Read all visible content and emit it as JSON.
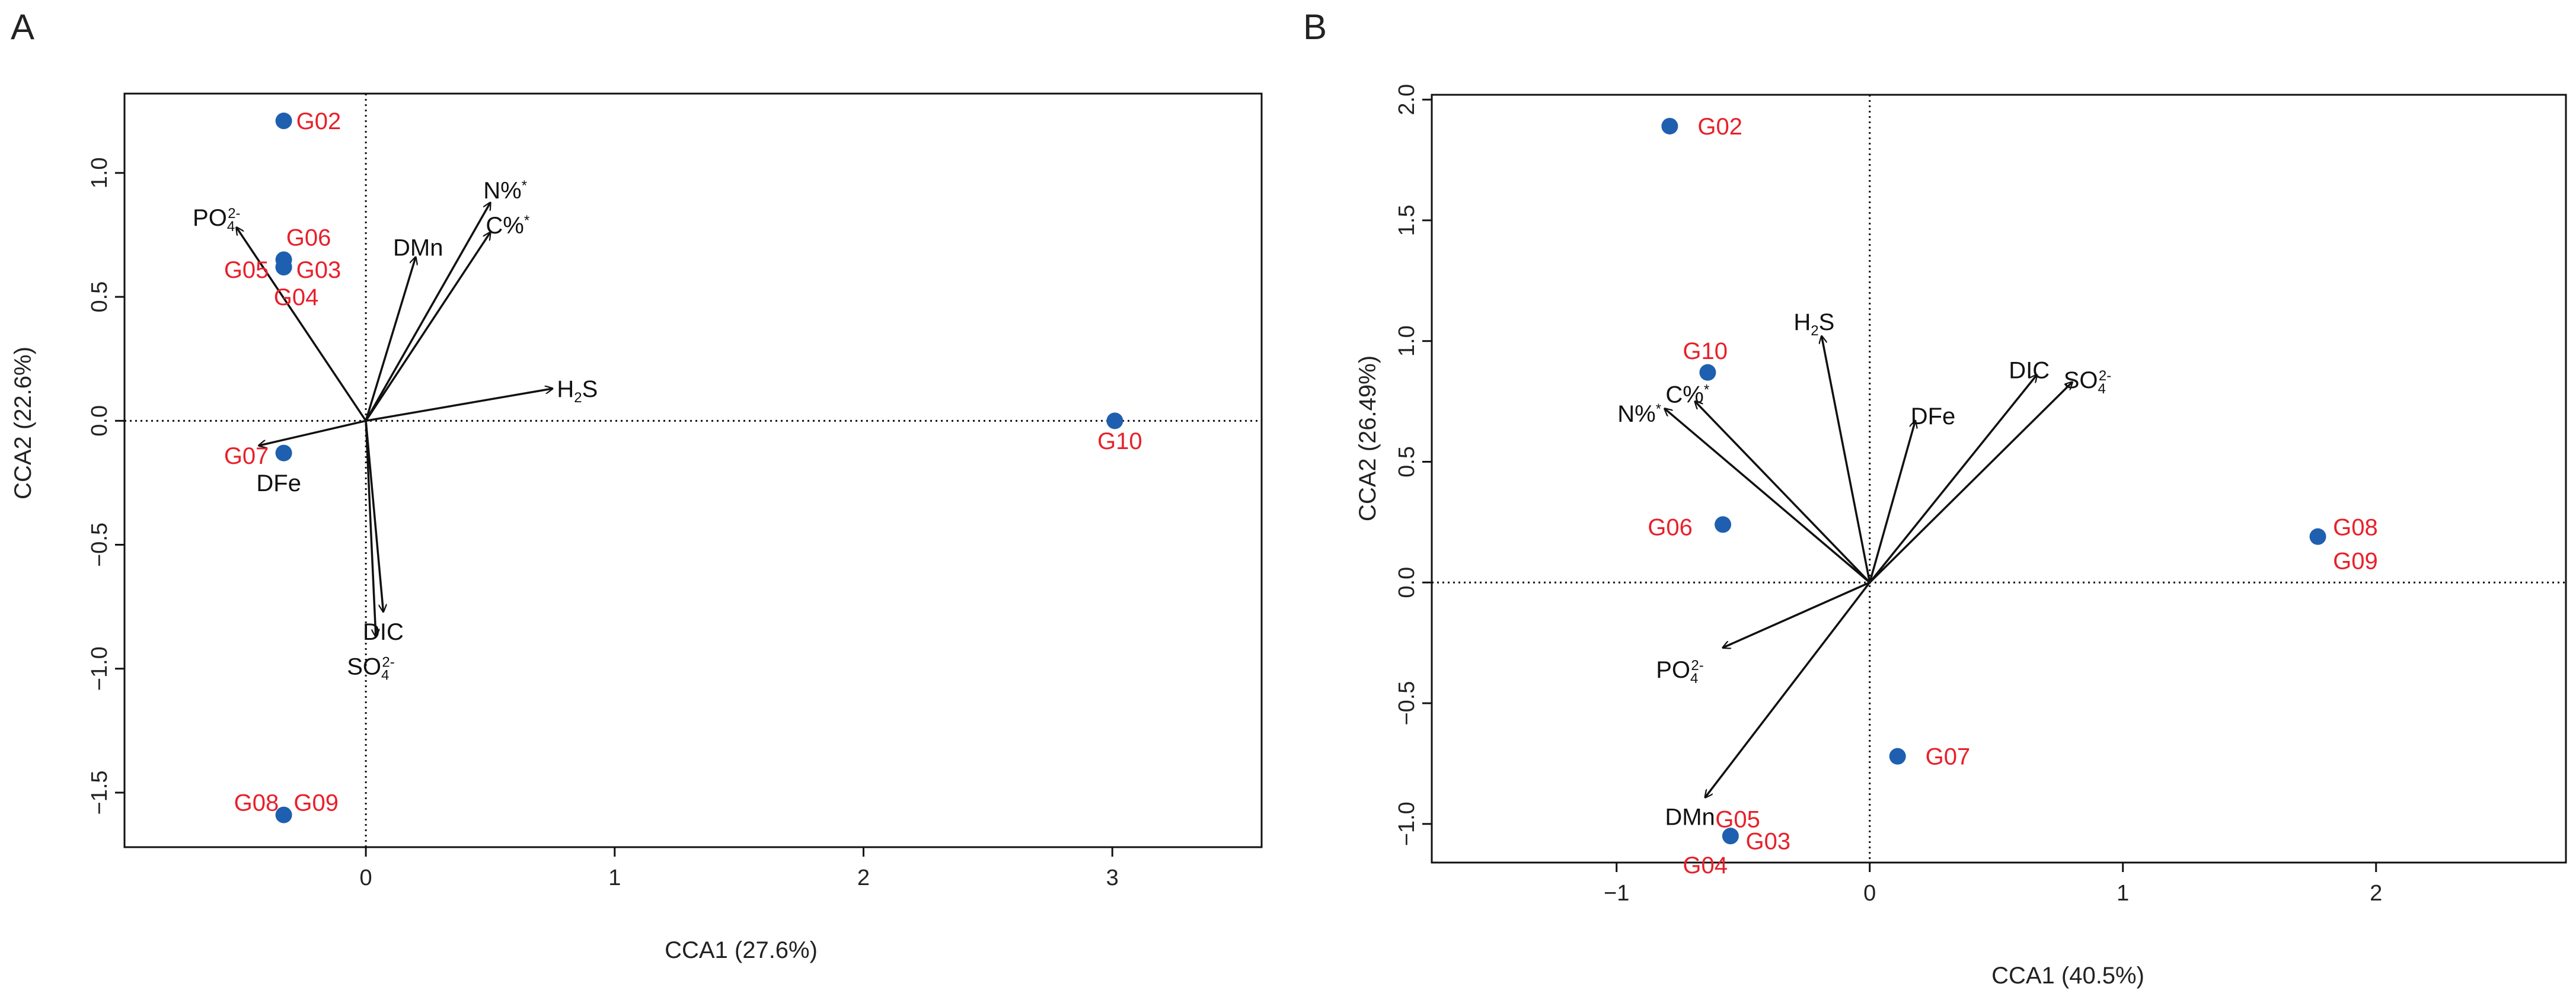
{
  "chart_data": [
    {
      "type": "scatter",
      "panel": "A",
      "xlabel": "CCA1 (27.6%)",
      "ylabel": "CCA2 (22.6%)",
      "xlim": [
        -0.97,
        3.6
      ],
      "ylim": [
        -1.72,
        1.32
      ],
      "xticks": [
        0,
        1,
        2,
        3
      ],
      "yticks": [
        -1.5,
        -1.0,
        -0.5,
        0.0,
        0.5,
        1.0
      ],
      "ytick_labels": [
        "−1.5",
        "−1.0",
        "−0.5",
        "0.0",
        "0.5",
        "1.0"
      ],
      "xtick_labels": [
        "0",
        "1",
        "2",
        "3"
      ],
      "reference_lines": {
        "x": 0,
        "y": 0,
        "style": "dotted"
      },
      "point_color": "#1f5fb0",
      "label_color": "#e8202a",
      "arrow_color": "#111111",
      "sites": [
        {
          "name": "G02",
          "x": -0.33,
          "y": 1.21,
          "labels": [
            {
              "text": "G02",
              "dx": 0.05,
              "dy": 0.0,
              "anchor": "start"
            }
          ]
        },
        {
          "name": "G06",
          "x": -0.33,
          "y": 0.65,
          "labels": [
            {
              "text": "G06",
              "dx": 0.01,
              "dy": 0.09,
              "anchor": "start"
            }
          ]
        },
        {
          "name": "G03",
          "x": -0.33,
          "y": 0.62,
          "labels": [
            {
              "text": "G03",
              "dx": 0.05,
              "dy": -0.01,
              "anchor": "start"
            }
          ]
        },
        {
          "name": "G05",
          "x": -0.33,
          "y": 0.62,
          "labels": [
            {
              "text": "G05",
              "dx": -0.06,
              "dy": -0.01,
              "anchor": "end"
            },
            {
              "text": "G04",
              "dx": 0.05,
              "dy": -0.12,
              "anchor": "middle"
            }
          ]
        },
        {
          "name": "G07",
          "x": -0.33,
          "y": -0.13,
          "labels": [
            {
              "text": "G07",
              "dx": -0.06,
              "dy": -0.01,
              "anchor": "end"
            }
          ]
        },
        {
          "name": "G08",
          "x": -0.33,
          "y": -1.59,
          "labels": [
            {
              "text": "G08",
              "dx": -0.02,
              "dy": 0.05,
              "anchor": "end"
            },
            {
              "text": "G09",
              "dx": 0.04,
              "dy": 0.05,
              "anchor": "start"
            }
          ]
        },
        {
          "name": "G10",
          "x": 3.01,
          "y": 0.0,
          "labels": [
            {
              "text": "G10",
              "dx": 0.02,
              "dy": -0.08,
              "anchor": "middle"
            }
          ]
        }
      ],
      "vectors": [
        {
          "name": "PO4 2-",
          "base": "PO",
          "sub": "4",
          "sup": "2-",
          "x": -0.52,
          "y": 0.78,
          "lx": -0.6,
          "ly": 0.82,
          "anchor": "middle"
        },
        {
          "name": "DMn",
          "x": 0.2,
          "y": 0.66,
          "lx": 0.21,
          "ly": 0.7,
          "anchor": "middle"
        },
        {
          "name": "N%*",
          "base": "N%",
          "sup": "*",
          "x": 0.5,
          "y": 0.88,
          "lx": 0.56,
          "ly": 0.93,
          "anchor": "middle"
        },
        {
          "name": "C%*",
          "base": "C%",
          "sup": "*",
          "x": 0.5,
          "y": 0.76,
          "lx": 0.57,
          "ly": 0.79,
          "anchor": "middle"
        },
        {
          "name": "H2S",
          "base": "H",
          "sub": "2",
          "tail": "S",
          "x": 0.75,
          "y": 0.13,
          "lx": 0.85,
          "ly": 0.13,
          "anchor": "middle"
        },
        {
          "name": "DFe",
          "x": -0.43,
          "y": -0.1,
          "lx": -0.35,
          "ly": -0.25,
          "anchor": "middle"
        },
        {
          "name": "DIC",
          "x": 0.07,
          "y": -0.77,
          "lx": 0.07,
          "ly": -0.85,
          "anchor": "middle"
        },
        {
          "name": "SO4 2-",
          "base": "SO",
          "sub": "4",
          "sup": "2-",
          "x": 0.04,
          "y": -0.87,
          "lx": 0.02,
          "ly": -0.99,
          "anchor": "middle"
        }
      ]
    },
    {
      "type": "scatter",
      "panel": "B",
      "xlabel": "CCA1 (40.5%)",
      "ylabel": "CCA2 (26.49%)",
      "xlim": [
        -1.73,
        2.75
      ],
      "ylim": [
        -1.16,
        2.02
      ],
      "xticks": [
        -1,
        0,
        1,
        2
      ],
      "yticks": [
        -1.0,
        -0.5,
        0.0,
        0.5,
        1.0,
        1.5,
        2.0
      ],
      "ytick_labels": [
        "−1.0",
        "−0.5",
        "0.0",
        "0.5",
        "1.0",
        "1.5",
        "2.0"
      ],
      "xtick_labels": [
        "−1",
        "0",
        "1",
        "2"
      ],
      "reference_lines": {
        "x": 0,
        "y": 0,
        "style": "dotted"
      },
      "point_color": "#1f5fb0",
      "label_color": "#e8202a",
      "arrow_color": "#111111",
      "sites": [
        {
          "name": "G02",
          "x": -0.79,
          "y": 1.89,
          "labels": [
            {
              "text": "G02",
              "dx": 0.11,
              "dy": 0.0,
              "anchor": "start"
            }
          ]
        },
        {
          "name": "G10",
          "x": -0.64,
          "y": 0.87,
          "labels": [
            {
              "text": "G10",
              "dx": -0.01,
              "dy": 0.09,
              "anchor": "middle"
            }
          ]
        },
        {
          "name": "G06",
          "x": -0.58,
          "y": 0.24,
          "labels": [
            {
              "text": "G06",
              "dx": -0.12,
              "dy": -0.01,
              "anchor": "end"
            }
          ]
        },
        {
          "name": "G08",
          "x": 1.77,
          "y": 0.19,
          "labels": [
            {
              "text": "G08",
              "dx": 0.06,
              "dy": 0.04,
              "anchor": "start"
            },
            {
              "text": "G09",
              "dx": 0.06,
              "dy": -0.1,
              "anchor": "start"
            }
          ]
        },
        {
          "name": "G07",
          "x": 0.11,
          "y": -0.72,
          "labels": [
            {
              "text": "G07",
              "dx": 0.11,
              "dy": 0.0,
              "anchor": "start"
            }
          ]
        },
        {
          "name": "G03",
          "x": -0.55,
          "y": -1.05,
          "labels": [
            {
              "text": "G05",
              "dx": -0.06,
              "dy": 0.07,
              "anchor": "start"
            },
            {
              "text": "G03",
              "dx": 0.06,
              "dy": -0.02,
              "anchor": "start"
            },
            {
              "text": "G04",
              "dx": -0.1,
              "dy": -0.12,
              "anchor": "middle"
            }
          ]
        }
      ],
      "vectors": [
        {
          "name": "H2S",
          "base": "H",
          "sub": "2",
          "tail": "S",
          "x": -0.19,
          "y": 1.02,
          "lx": -0.22,
          "ly": 1.08,
          "anchor": "middle"
        },
        {
          "name": "N%*",
          "base": "N%",
          "sup": "*",
          "x": -0.81,
          "y": 0.72,
          "lx": -0.91,
          "ly": 0.7,
          "anchor": "middle"
        },
        {
          "name": "C%*",
          "base": "C%",
          "sup": "*",
          "x": -0.69,
          "y": 0.75,
          "lx": -0.72,
          "ly": 0.78,
          "anchor": "middle"
        },
        {
          "name": "DFe",
          "x": 0.18,
          "y": 0.67,
          "lx": 0.25,
          "ly": 0.69,
          "anchor": "middle"
        },
        {
          "name": "DIC",
          "x": 0.66,
          "y": 0.86,
          "lx": 0.63,
          "ly": 0.88,
          "anchor": "middle"
        },
        {
          "name": "SO4 2-",
          "base": "SO",
          "sub": "4",
          "sup": "2-",
          "x": 0.8,
          "y": 0.83,
          "lx": 0.86,
          "ly": 0.84,
          "anchor": "middle"
        },
        {
          "name": "PO4 2-",
          "base": "PO",
          "sub": "4",
          "sup": "2-",
          "x": -0.58,
          "y": -0.27,
          "lx": -0.75,
          "ly": -0.36,
          "anchor": "middle"
        },
        {
          "name": "DMn",
          "x": -0.65,
          "y": -0.89,
          "lx": -0.71,
          "ly": -0.97,
          "anchor": "middle"
        }
      ]
    }
  ]
}
